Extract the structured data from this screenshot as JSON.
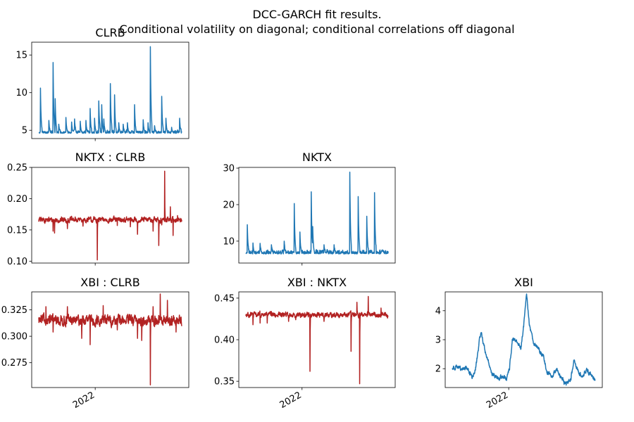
{
  "figure": {
    "title_line1": "DCC-GARCH fit results.",
    "title_line2": "Conditional volatility on diagonal; conditional correlations off diagonal"
  },
  "colors": {
    "volatility": "#1f77b4",
    "correlation": "#b22222"
  },
  "chart_data": [
    {
      "id": "clrb",
      "type": "line",
      "title": "CLRB",
      "series_kind": "volatility",
      "x_range": [
        "2020-12-01",
        "2023-08-31"
      ],
      "x_ticks": [],
      "ylim": [
        3.9,
        16.7
      ],
      "yticks": [
        5,
        10,
        15
      ],
      "baseline": 4.6,
      "noise": 0.25,
      "n": 680,
      "spikes": [
        [
          0.012,
          10.6
        ],
        [
          0.07,
          6.3
        ],
        [
          0.1,
          14.0
        ],
        [
          0.115,
          9.2
        ],
        [
          0.14,
          5.8
        ],
        [
          0.19,
          6.7
        ],
        [
          0.23,
          6.1
        ],
        [
          0.25,
          6.5
        ],
        [
          0.29,
          6.2
        ],
        [
          0.33,
          6.3
        ],
        [
          0.36,
          7.9
        ],
        [
          0.39,
          6.6
        ],
        [
          0.42,
          8.9
        ],
        [
          0.44,
          8.4
        ],
        [
          0.455,
          6.5
        ],
        [
          0.5,
          11.2
        ],
        [
          0.53,
          9.7
        ],
        [
          0.56,
          6.0
        ],
        [
          0.59,
          5.8
        ],
        [
          0.62,
          6.0
        ],
        [
          0.67,
          8.4
        ],
        [
          0.73,
          6.4
        ],
        [
          0.765,
          6.0
        ],
        [
          0.78,
          16.1
        ],
        [
          0.81,
          5.6
        ],
        [
          0.86,
          9.5
        ],
        [
          0.89,
          6.6
        ],
        [
          0.93,
          5.4
        ],
        [
          0.985,
          6.6
        ]
      ]
    },
    {
      "id": "nktx-clrb",
      "type": "line",
      "title": "NKTX : CLRB",
      "series_kind": "correlation",
      "x_range": [
        "2020-12-01",
        "2023-08-31"
      ],
      "x_ticks": [],
      "ylim": [
        0.097,
        0.25
      ],
      "yticks": [
        0.1,
        0.15,
        0.2,
        0.25
      ],
      "ytick_labels": [
        "0.10",
        "0.15",
        "0.20",
        "0.25"
      ],
      "baseline": 0.166,
      "noise": 0.0035,
      "n": 680,
      "spikes": [
        [
          0.1,
          0.148
        ],
        [
          0.11,
          0.145
        ],
        [
          0.2,
          0.152
        ],
        [
          0.31,
          0.156
        ],
        [
          0.41,
          0.102
        ],
        [
          0.55,
          0.157
        ],
        [
          0.64,
          0.155
        ],
        [
          0.69,
          0.143
        ],
        [
          0.8,
          0.148
        ],
        [
          0.84,
          0.125
        ],
        [
          0.86,
          0.158
        ],
        [
          0.88,
          0.244
        ],
        [
          0.92,
          0.187
        ],
        [
          0.94,
          0.141
        ],
        [
          0.97,
          0.173
        ]
      ]
    },
    {
      "id": "nktx",
      "type": "line",
      "title": "NKTX",
      "series_kind": "volatility",
      "x_range": [
        "2020-12-01",
        "2023-08-31"
      ],
      "x_ticks": [],
      "ylim": [
        4.0,
        30.2
      ],
      "yticks": [
        10,
        20,
        30
      ],
      "baseline": 6.5,
      "noise": 0.7,
      "n": 680,
      "spikes": [
        [
          0.01,
          14.5
        ],
        [
          0.05,
          9.5
        ],
        [
          0.1,
          9.4
        ],
        [
          0.18,
          9.0
        ],
        [
          0.27,
          10.0
        ],
        [
          0.34,
          20.3
        ],
        [
          0.38,
          12.5
        ],
        [
          0.46,
          23.5
        ],
        [
          0.47,
          14.0
        ],
        [
          0.55,
          9.0
        ],
        [
          0.62,
          9.0
        ],
        [
          0.73,
          28.9
        ],
        [
          0.79,
          22.2
        ],
        [
          0.85,
          16.8
        ],
        [
          0.905,
          23.3
        ],
        [
          0.96,
          7.5
        ]
      ]
    },
    {
      "id": "xbi-clrb",
      "type": "line",
      "title": "XBI : CLRB",
      "series_kind": "correlation",
      "x_range": [
        "2020-12-01",
        "2023-08-31"
      ],
      "x_ticks": [
        {
          "value": "2022-01-01",
          "label": "2022"
        }
      ],
      "ylim": [
        0.2515,
        0.342
      ],
      "yticks": [
        0.275,
        0.3,
        0.325
      ],
      "ytick_labels": [
        "0.275",
        "0.300",
        "0.325"
      ],
      "baseline": 0.315,
      "noise": 0.004,
      "n": 680,
      "spikes": [
        [
          0.05,
          0.328
        ],
        [
          0.1,
          0.304
        ],
        [
          0.2,
          0.328
        ],
        [
          0.3,
          0.298
        ],
        [
          0.36,
          0.292
        ],
        [
          0.45,
          0.329
        ],
        [
          0.55,
          0.306
        ],
        [
          0.66,
          0.31
        ],
        [
          0.69,
          0.298
        ],
        [
          0.72,
          0.296
        ],
        [
          0.78,
          0.254
        ],
        [
          0.8,
          0.328
        ],
        [
          0.85,
          0.34
        ],
        [
          0.9,
          0.334
        ],
        [
          0.96,
          0.304
        ]
      ]
    },
    {
      "id": "xbi-nktx",
      "type": "line",
      "title": "XBI : NKTX",
      "series_kind": "correlation",
      "x_range": [
        "2020-12-01",
        "2023-08-31"
      ],
      "x_ticks": [
        {
          "value": "2022-01-01",
          "label": "2022"
        }
      ],
      "ylim": [
        0.3425,
        0.4575
      ],
      "yticks": [
        0.35,
        0.4,
        0.45
      ],
      "ytick_labels": [
        "0.35",
        "0.40",
        "0.45"
      ],
      "baseline": 0.43,
      "noise": 0.0025,
      "n": 680,
      "spikes": [
        [
          0.05,
          0.418
        ],
        [
          0.1,
          0.42
        ],
        [
          0.15,
          0.42
        ],
        [
          0.3,
          0.422
        ],
        [
          0.35,
          0.424
        ],
        [
          0.45,
          0.362
        ],
        [
          0.55,
          0.422
        ],
        [
          0.74,
          0.386
        ],
        [
          0.78,
          0.445
        ],
        [
          0.8,
          0.347
        ],
        [
          0.86,
          0.452
        ],
        [
          0.95,
          0.438
        ]
      ]
    },
    {
      "id": "xbi",
      "type": "line",
      "title": "XBI",
      "series_kind": "volatility",
      "x_range": [
        "2020-12-01",
        "2023-08-31"
      ],
      "x_ticks": [
        {
          "value": "2022-01-01",
          "label": "2022"
        }
      ],
      "ylim": [
        1.35,
        4.65
      ],
      "yticks": [
        2,
        3,
        4
      ],
      "noise": 0.06,
      "n": 680,
      "trend": [
        [
          0.0,
          2.0
        ],
        [
          0.03,
          2.1
        ],
        [
          0.06,
          1.95
        ],
        [
          0.1,
          2.05
        ],
        [
          0.14,
          1.7
        ],
        [
          0.16,
          1.9
        ],
        [
          0.2,
          3.3
        ],
        [
          0.23,
          2.6
        ],
        [
          0.28,
          1.8
        ],
        [
          0.32,
          1.65
        ],
        [
          0.36,
          1.75
        ],
        [
          0.38,
          1.6
        ],
        [
          0.4,
          2.0
        ],
        [
          0.42,
          3.0
        ],
        [
          0.46,
          2.9
        ],
        [
          0.48,
          2.7
        ],
        [
          0.5,
          3.5
        ],
        [
          0.52,
          4.55
        ],
        [
          0.54,
          3.5
        ],
        [
          0.57,
          2.9
        ],
        [
          0.6,
          2.7
        ],
        [
          0.64,
          2.4
        ],
        [
          0.66,
          1.9
        ],
        [
          0.7,
          1.75
        ],
        [
          0.73,
          2.0
        ],
        [
          0.76,
          1.7
        ],
        [
          0.79,
          1.45
        ],
        [
          0.83,
          1.65
        ],
        [
          0.85,
          2.3
        ],
        [
          0.88,
          1.9
        ],
        [
          0.91,
          1.75
        ],
        [
          0.94,
          1.95
        ],
        [
          0.97,
          1.8
        ],
        [
          1.0,
          1.65
        ]
      ]
    }
  ]
}
